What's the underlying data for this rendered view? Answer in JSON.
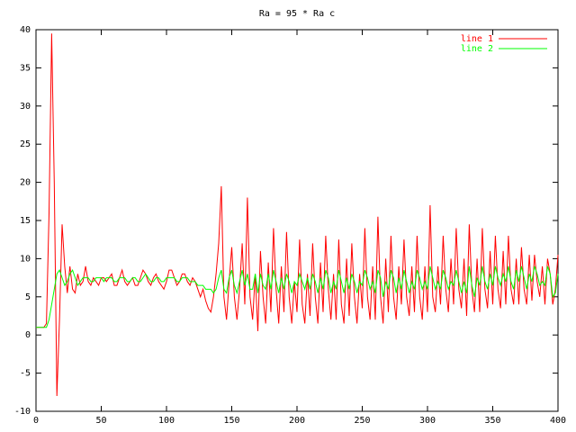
{
  "chart_data": {
    "type": "line",
    "title": "Ra = 95 * Ra c",
    "x": [
      0,
      2,
      4,
      6,
      8,
      10,
      12,
      14,
      16,
      18,
      20,
      22,
      24,
      26,
      28,
      30,
      32,
      34,
      36,
      38,
      40,
      42,
      44,
      46,
      48,
      50,
      52,
      54,
      56,
      58,
      60,
      62,
      64,
      66,
      68,
      70,
      72,
      74,
      76,
      78,
      80,
      82,
      84,
      86,
      88,
      90,
      92,
      94,
      96,
      98,
      100,
      102,
      104,
      106,
      108,
      110,
      112,
      114,
      116,
      118,
      120,
      122,
      124,
      126,
      128,
      130,
      132,
      134,
      136,
      138,
      140,
      142,
      144,
      146,
      148,
      150,
      152,
      154,
      156,
      158,
      160,
      162,
      164,
      166,
      168,
      170,
      172,
      174,
      176,
      178,
      180,
      182,
      184,
      186,
      188,
      190,
      192,
      194,
      196,
      198,
      200,
      202,
      204,
      206,
      208,
      210,
      212,
      214,
      216,
      218,
      220,
      222,
      224,
      226,
      228,
      230,
      232,
      234,
      236,
      238,
      240,
      242,
      244,
      246,
      248,
      250,
      252,
      254,
      256,
      258,
      260,
      262,
      264,
      266,
      268,
      270,
      272,
      274,
      276,
      278,
      280,
      282,
      284,
      286,
      288,
      290,
      292,
      294,
      296,
      298,
      300,
      302,
      304,
      306,
      308,
      310,
      312,
      314,
      316,
      318,
      320,
      322,
      324,
      326,
      328,
      330,
      332,
      334,
      336,
      338,
      340,
      342,
      344,
      346,
      348,
      350,
      352,
      354,
      356,
      358,
      360,
      362,
      364,
      366,
      368,
      370,
      372,
      374,
      376,
      378,
      380,
      382,
      384,
      386,
      388,
      390,
      392,
      394,
      396,
      398,
      400
    ],
    "series": [
      {
        "name": "line 1",
        "color": "#ff0000",
        "values": [
          1,
          1,
          1,
          1,
          1.5,
          16,
          39.5,
          20,
          -8,
          2,
          14.5,
          9,
          5.5,
          9,
          6,
          5.5,
          8,
          6.5,
          7,
          9,
          7,
          6.5,
          7.5,
          7,
          6.5,
          7.5,
          7.5,
          7,
          7.5,
          8,
          6.5,
          6.5,
          7.5,
          8.5,
          7,
          6.5,
          7,
          7.5,
          6.5,
          6.5,
          7.5,
          8.5,
          8,
          7,
          6.5,
          7.5,
          8,
          7,
          6.5,
          6,
          7,
          8.5,
          8.5,
          7.5,
          6.5,
          7,
          8,
          8,
          7,
          6.5,
          7.5,
          7,
          6,
          5,
          6,
          4.5,
          3.5,
          3,
          5,
          8,
          12,
          19.5,
          5,
          2,
          7,
          11.5,
          5,
          2,
          6,
          12,
          4,
          18,
          5,
          2,
          8,
          0.5,
          11,
          5,
          1.5,
          9.5,
          3,
          14,
          6,
          1.5,
          9,
          3,
          13.5,
          5,
          1.5,
          7,
          3,
          12.5,
          4,
          1.5,
          8,
          2.5,
          12,
          5,
          1.5,
          9.5,
          3,
          13,
          6,
          2,
          8,
          2,
          12.5,
          4,
          1.5,
          10,
          2.5,
          12,
          5,
          1.5,
          8,
          3.5,
          14,
          5,
          2,
          9,
          2,
          15.5,
          5,
          1.5,
          10,
          3,
          13,
          5,
          2,
          9,
          4,
          12.5,
          5,
          2.5,
          9,
          3,
          13,
          5,
          2,
          9,
          3,
          17,
          5,
          3,
          9,
          4,
          13,
          6,
          3,
          10,
          4,
          14,
          6,
          3.5,
          10,
          2.5,
          14.5,
          6,
          3,
          10,
          3,
          14,
          6,
          3.5,
          11,
          4,
          13,
          6,
          3.5,
          11,
          4,
          13,
          6,
          4,
          10,
          4,
          11.5,
          6,
          4,
          10.5,
          4.5,
          10.5,
          7,
          5,
          9,
          4,
          10,
          8,
          4,
          6,
          10.5
        ]
      },
      {
        "name": "line 2",
        "color": "#00ff00",
        "values": [
          1,
          1,
          1,
          1,
          1,
          2,
          4,
          6,
          8,
          8.5,
          7.5,
          6.5,
          7,
          8,
          8.5,
          7.5,
          6.5,
          7,
          7.5,
          7.5,
          7.5,
          7,
          7,
          7.5,
          7.5,
          7.5,
          7,
          7.5,
          7.5,
          7.5,
          7,
          7,
          7.5,
          7.5,
          7.5,
          7,
          7,
          7.5,
          7.5,
          7,
          7,
          7.5,
          8,
          7.5,
          7,
          7,
          7.5,
          7.5,
          7,
          7,
          7.5,
          7.5,
          7.5,
          7.5,
          7,
          7,
          7.5,
          7.5,
          7.5,
          7,
          7,
          7,
          6.5,
          6.5,
          6.5,
          6,
          6,
          6,
          5.5,
          6,
          7.5,
          8.5,
          6,
          5.5,
          7.5,
          8.5,
          6.5,
          5.5,
          7,
          8.5,
          6.5,
          8,
          6,
          6,
          8,
          5.5,
          8,
          6.5,
          6,
          8,
          6,
          8.5,
          7,
          5.5,
          7.5,
          6,
          8,
          7,
          5.5,
          7,
          6.5,
          8,
          7,
          6,
          7.5,
          6,
          8,
          7,
          5.5,
          7.5,
          6,
          8.5,
          7.5,
          5.5,
          7,
          6,
          8.5,
          7,
          5.5,
          7.5,
          6,
          8,
          7,
          5.5,
          7,
          6.5,
          8.5,
          7.5,
          6,
          7,
          5.5,
          8.5,
          7.5,
          5,
          7,
          6,
          8.5,
          7.5,
          5.5,
          7.5,
          6,
          8.5,
          7,
          5.5,
          7,
          6,
          8.5,
          7.5,
          6,
          7,
          6,
          9,
          7.5,
          6,
          7,
          6,
          8.5,
          7.5,
          6,
          7,
          6.5,
          8.5,
          7,
          5.5,
          7,
          5.5,
          9,
          6.5,
          5,
          7.5,
          6.5,
          9,
          7,
          6,
          8,
          6.5,
          9,
          7.5,
          6.5,
          8,
          7,
          9,
          7,
          6,
          8.5,
          7,
          9,
          7.5,
          6,
          8,
          7,
          9,
          8,
          6.5,
          7,
          6.5,
          9,
          8,
          5,
          5.5,
          8
        ]
      }
    ],
    "xlim": [
      0,
      400
    ],
    "xticks": [
      0,
      50,
      100,
      150,
      200,
      250,
      300,
      350,
      400
    ],
    "ylim": [
      -10,
      40
    ],
    "yticks": [
      -10,
      -5,
      0,
      5,
      10,
      15,
      20,
      25,
      30,
      35,
      40
    ],
    "legend": "top-right"
  }
}
